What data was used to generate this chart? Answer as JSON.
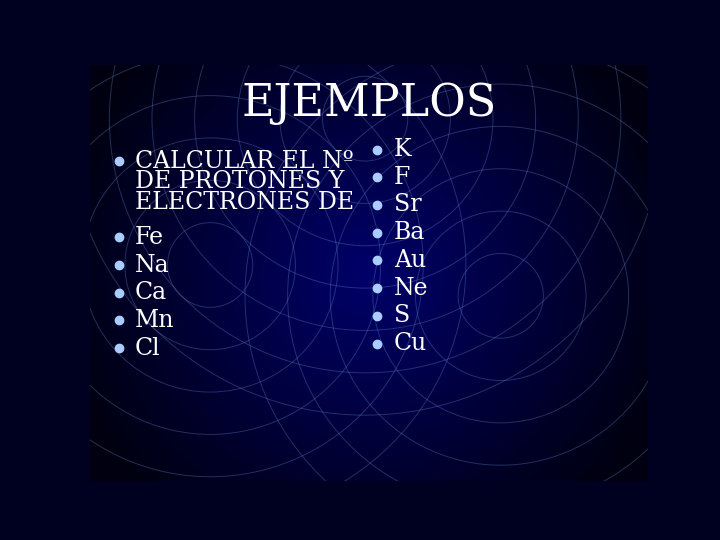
{
  "title": "EJEMPLOS",
  "title_color": "#FFFFFF",
  "title_fontsize": 32,
  "bg_color_center": "#0a0a6a",
  "bg_color_edge": "#000020",
  "circle_color": "#6688CC",
  "circle_alpha": 0.4,
  "left_bullet_intro_lines": [
    "CALCULAR EL Nº",
    "DE PROTONES Y",
    "ELECTRONES DE"
  ],
  "left_bullets": [
    "Fe",
    "Na",
    "Ca",
    "Mn",
    "Cl"
  ],
  "right_bullets": [
    "K",
    "F",
    "Sr",
    "Ba",
    "Au",
    "Ne",
    "S",
    "Cu"
  ],
  "text_color": "#FFFFFF",
  "bullet_fontsize": 17,
  "intro_fontsize": 17,
  "bullet_dot_color": "#AACCFF",
  "bullet_dot_size": 6
}
